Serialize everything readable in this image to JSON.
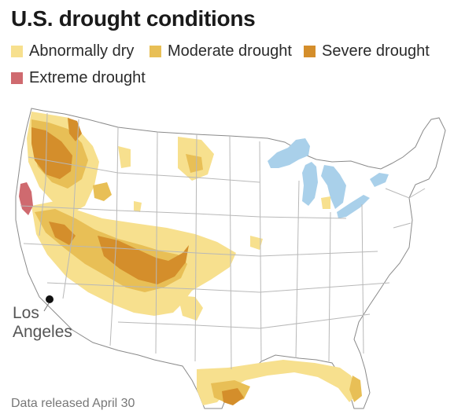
{
  "title": "U.S. drought conditions",
  "legend": [
    {
      "label": "Abnormally dry",
      "color": "#f7e08e"
    },
    {
      "label": "Moderate drought",
      "color": "#e8bf56"
    },
    {
      "label": "Severe drought",
      "color": "#d48e2b"
    },
    {
      "label": "Extreme drought",
      "color": "#cf6a6f"
    }
  ],
  "map": {
    "land_color": "#ffffff",
    "border_color": "#b8b8b8",
    "water_color": "#a9d0ea",
    "city": {
      "line1": "Los",
      "line2": "Angeles",
      "marker_color": "#111111"
    }
  },
  "footnote": "Data released April 30"
}
